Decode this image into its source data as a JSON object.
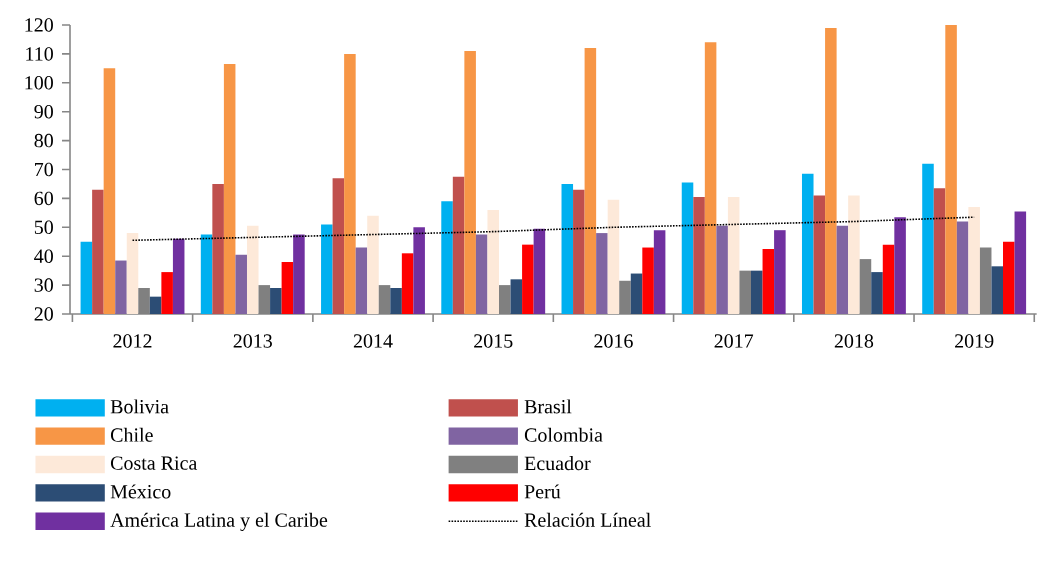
{
  "chart_data": {
    "type": "bar",
    "categories": [
      "2012",
      "2013",
      "2014",
      "2015",
      "2016",
      "2017",
      "2018",
      "2019"
    ],
    "ylim": [
      20,
      120
    ],
    "yticks": [
      20,
      30,
      40,
      50,
      60,
      70,
      80,
      90,
      100,
      110,
      120
    ],
    "legend": "bottom",
    "series": [
      {
        "name": "Bolivia",
        "color": "#00b0f0",
        "values": [
          45,
          47.5,
          51,
          59,
          65,
          65.5,
          68.5,
          72
        ]
      },
      {
        "name": "Brasil",
        "color": "#c0504d",
        "values": [
          63,
          65,
          67,
          67.5,
          63,
          60.5,
          61,
          63.5
        ]
      },
      {
        "name": "Chile",
        "color": "#f79646",
        "values": [
          105,
          106.5,
          110,
          111,
          112,
          114,
          119,
          120
        ]
      },
      {
        "name": "Colombia",
        "color": "#8064a2",
        "values": [
          38.5,
          40.5,
          43,
          47.5,
          48,
          50.5,
          50.5,
          52
        ]
      },
      {
        "name": "Costa Rica",
        "color": "#fde9d9",
        "values": [
          48,
          50.5,
          54,
          56,
          59.5,
          60.5,
          61,
          57
        ]
      },
      {
        "name": "Ecuador",
        "color": "#808080",
        "values": [
          29,
          30,
          30,
          30,
          31.5,
          35,
          39,
          43
        ]
      },
      {
        "name": "México",
        "color": "#2c4d75",
        "values": [
          26,
          29,
          29,
          32,
          34,
          35,
          34.5,
          36.5
        ]
      },
      {
        "name": "Perú",
        "color": "#ff0000",
        "values": [
          34.5,
          38,
          41,
          44,
          43,
          42.5,
          44,
          45
        ]
      },
      {
        "name": "América Latina y el Caribe",
        "color": "#7030a0",
        "values": [
          46,
          47.5,
          50,
          49.5,
          49,
          49,
          53.5,
          55.5
        ]
      },
      {
        "name": "Relación Líneal",
        "type": "line",
        "line_style": "dotted",
        "color": "#000000",
        "values": [
          45.5,
          46.5,
          47.5,
          48.5,
          50,
          51,
          52,
          53.5
        ]
      }
    ]
  }
}
